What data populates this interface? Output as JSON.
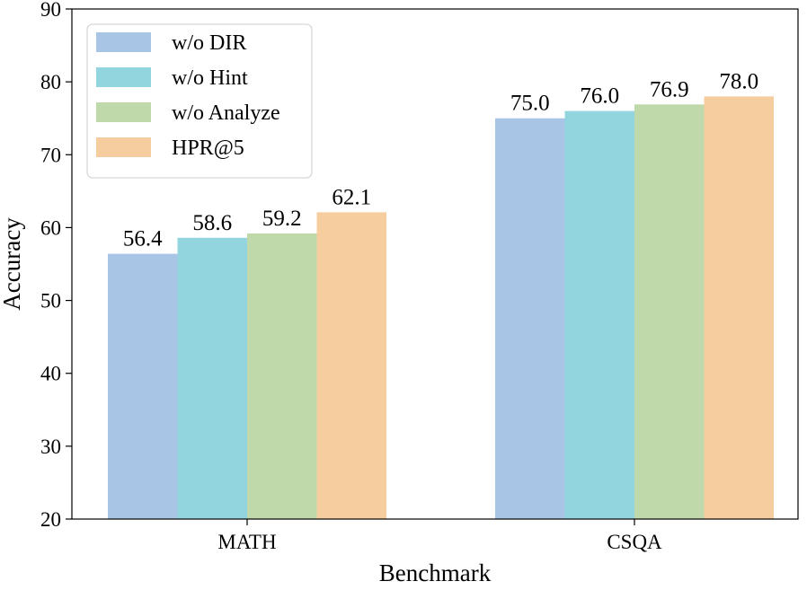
{
  "chart_data": {
    "type": "bar",
    "xlabel": "Benchmark",
    "ylabel": "Accuracy",
    "ylim": [
      20,
      90
    ],
    "yticks": [
      "20",
      "30",
      "40",
      "50",
      "60",
      "70",
      "80",
      "90"
    ],
    "categories": [
      "MATH",
      "CSQA"
    ],
    "series": [
      {
        "name": "w/o DIR",
        "color": "#a8c5e5",
        "values": [
          56.4,
          75.0
        ],
        "labels": [
          "56.4",
          "75.0"
        ]
      },
      {
        "name": "w/o Hint",
        "color": "#93d5df",
        "values": [
          58.6,
          76.0
        ],
        "labels": [
          "58.6",
          "76.0"
        ]
      },
      {
        "name": "w/o Analyze",
        "color": "#bfd9ab",
        "values": [
          59.2,
          76.9
        ],
        "labels": [
          "59.2",
          "76.9"
        ]
      },
      {
        "name": "HPR@5",
        "color": "#f6cd9f",
        "values": [
          62.1,
          78.0
        ],
        "labels": [
          "62.1",
          "78.0"
        ]
      }
    ],
    "legend_position": "top-left",
    "grid": false
  }
}
